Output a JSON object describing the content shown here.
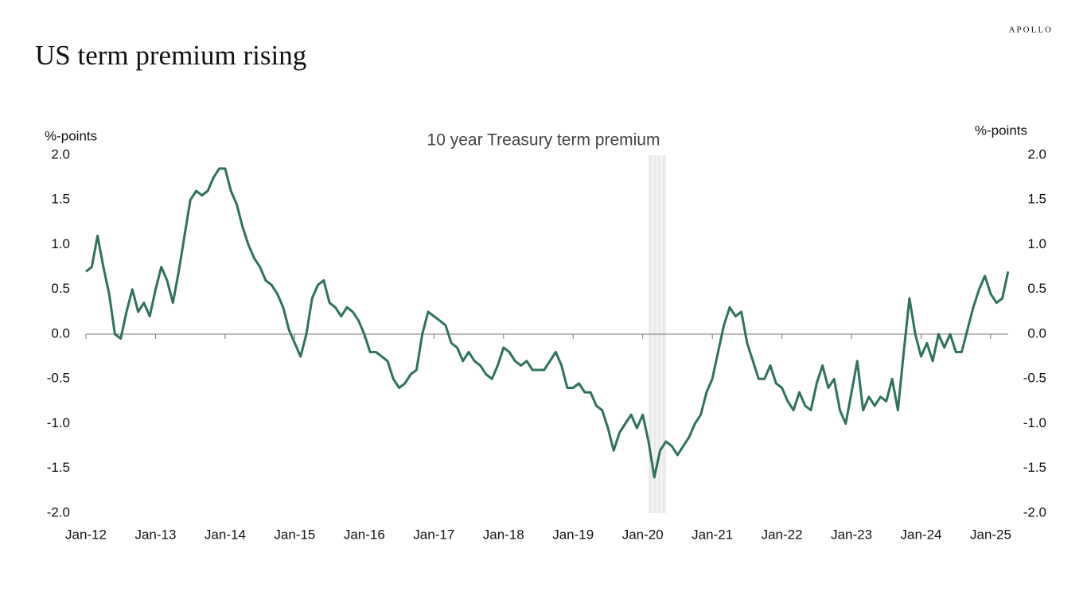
{
  "chart_data": {
    "type": "line",
    "brand": "APOLLO",
    "title": "US term premium rising",
    "subtitle": "10 year Treasury term premium",
    "ylabel": "%-points",
    "y2label": "%-points",
    "x": [
      "2012-01",
      "2012-02",
      "2012-03",
      "2012-04",
      "2012-05",
      "2012-06",
      "2012-07",
      "2012-08",
      "2012-09",
      "2012-10",
      "2012-11",
      "2012-12",
      "2013-01",
      "2013-02",
      "2013-03",
      "2013-04",
      "2013-05",
      "2013-06",
      "2013-07",
      "2013-08",
      "2013-09",
      "2013-10",
      "2013-11",
      "2013-12",
      "2014-01",
      "2014-02",
      "2014-03",
      "2014-04",
      "2014-05",
      "2014-06",
      "2014-07",
      "2014-08",
      "2014-09",
      "2014-10",
      "2014-11",
      "2014-12",
      "2015-01",
      "2015-02",
      "2015-03",
      "2015-04",
      "2015-05",
      "2015-06",
      "2015-07",
      "2015-08",
      "2015-09",
      "2015-10",
      "2015-11",
      "2015-12",
      "2016-01",
      "2016-02",
      "2016-03",
      "2016-04",
      "2016-05",
      "2016-06",
      "2016-07",
      "2016-08",
      "2016-09",
      "2016-10",
      "2016-11",
      "2016-12",
      "2017-01",
      "2017-02",
      "2017-03",
      "2017-04",
      "2017-05",
      "2017-06",
      "2017-07",
      "2017-08",
      "2017-09",
      "2017-10",
      "2017-11",
      "2017-12",
      "2018-01",
      "2018-02",
      "2018-03",
      "2018-04",
      "2018-05",
      "2018-06",
      "2018-07",
      "2018-08",
      "2018-09",
      "2018-10",
      "2018-11",
      "2018-12",
      "2019-01",
      "2019-02",
      "2019-03",
      "2019-04",
      "2019-05",
      "2019-06",
      "2019-07",
      "2019-08",
      "2019-09",
      "2019-10",
      "2019-11",
      "2019-12",
      "2020-01",
      "2020-02",
      "2020-03",
      "2020-04",
      "2020-05",
      "2020-06",
      "2020-07",
      "2020-08",
      "2020-09",
      "2020-10",
      "2020-11",
      "2020-12",
      "2021-01",
      "2021-02",
      "2021-03",
      "2021-04",
      "2021-05",
      "2021-06",
      "2021-07",
      "2021-08",
      "2021-09",
      "2021-10",
      "2021-11",
      "2021-12",
      "2022-01",
      "2022-02",
      "2022-03",
      "2022-04",
      "2022-05",
      "2022-06",
      "2022-07",
      "2022-08",
      "2022-09",
      "2022-10",
      "2022-11",
      "2022-12",
      "2023-01",
      "2023-02",
      "2023-03",
      "2023-04",
      "2023-05",
      "2023-06",
      "2023-07",
      "2023-08",
      "2023-09",
      "2023-10",
      "2023-11",
      "2023-12",
      "2024-01",
      "2024-02",
      "2024-03",
      "2024-04",
      "2024-05",
      "2024-06",
      "2024-07",
      "2024-08",
      "2024-09",
      "2024-10",
      "2024-11",
      "2024-12",
      "2025-01",
      "2025-02",
      "2025-03",
      "2025-04"
    ],
    "series": [
      {
        "color": "#2e7358",
        "values": [
          0.7,
          0.75,
          1.1,
          0.75,
          0.45,
          0.0,
          -0.05,
          0.25,
          0.5,
          0.25,
          0.35,
          0.2,
          0.5,
          0.75,
          0.6,
          0.35,
          0.7,
          1.1,
          1.5,
          1.6,
          1.55,
          1.6,
          1.75,
          1.85,
          1.85,
          1.6,
          1.45,
          1.2,
          1.0,
          0.85,
          0.75,
          0.6,
          0.55,
          0.45,
          0.3,
          0.05,
          -0.1,
          -0.25,
          0.0,
          0.4,
          0.55,
          0.6,
          0.35,
          0.3,
          0.2,
          0.3,
          0.25,
          0.15,
          0.0,
          -0.2,
          -0.2,
          -0.25,
          -0.3,
          -0.5,
          -0.6,
          -0.55,
          -0.45,
          -0.4,
          0.0,
          0.25,
          0.2,
          0.15,
          0.1,
          -0.1,
          -0.15,
          -0.3,
          -0.2,
          -0.3,
          -0.35,
          -0.45,
          -0.5,
          -0.35,
          -0.15,
          -0.2,
          -0.3,
          -0.35,
          -0.3,
          -0.4,
          -0.4,
          -0.4,
          -0.3,
          -0.2,
          -0.35,
          -0.6,
          -0.6,
          -0.55,
          -0.65,
          -0.65,
          -0.8,
          -0.85,
          -1.05,
          -1.3,
          -1.1,
          -1.0,
          -0.9,
          -1.05,
          -0.9,
          -1.2,
          -1.6,
          -1.3,
          -1.2,
          -1.25,
          -1.35,
          -1.25,
          -1.15,
          -1.0,
          -0.9,
          -0.65,
          -0.5,
          -0.2,
          0.1,
          0.3,
          0.2,
          0.25,
          -0.1,
          -0.3,
          -0.5,
          -0.5,
          -0.35,
          -0.55,
          -0.6,
          -0.75,
          -0.85,
          -0.65,
          -0.8,
          -0.85,
          -0.55,
          -0.35,
          -0.6,
          -0.5,
          -0.85,
          -1.0,
          -0.65,
          -0.3,
          -0.85,
          -0.7,
          -0.8,
          -0.7,
          -0.75,
          -0.5,
          -0.85,
          -0.2,
          0.4,
          0.0,
          -0.25,
          -0.1,
          -0.3,
          0.0,
          -0.15,
          0.0,
          -0.2,
          -0.2,
          0.05,
          0.3,
          0.5,
          0.65,
          0.45,
          0.35,
          0.4,
          0.7
        ]
      }
    ],
    "shaded_periods": [
      [
        "2020-02",
        "2020-05"
      ]
    ],
    "xlim": [
      "2012-01",
      "2025-04"
    ],
    "xticks": [
      {
        "value": "2012-01",
        "label": "Jan-12"
      },
      {
        "value": "2013-01",
        "label": "Jan-13"
      },
      {
        "value": "2014-01",
        "label": "Jan-14"
      },
      {
        "value": "2015-01",
        "label": "Jan-15"
      },
      {
        "value": "2016-01",
        "label": "Jan-16"
      },
      {
        "value": "2017-01",
        "label": "Jan-17"
      },
      {
        "value": "2018-01",
        "label": "Jan-18"
      },
      {
        "value": "2019-01",
        "label": "Jan-19"
      },
      {
        "value": "2020-01",
        "label": "Jan-20"
      },
      {
        "value": "2021-01",
        "label": "Jan-21"
      },
      {
        "value": "2022-01",
        "label": "Jan-22"
      },
      {
        "value": "2023-01",
        "label": "Jan-23"
      },
      {
        "value": "2024-01",
        "label": "Jan-24"
      },
      {
        "value": "2025-01",
        "label": "Jan-25"
      }
    ],
    "ylim": [
      -2,
      2
    ],
    "yticks": [
      {
        "value": 2,
        "label": "2.0"
      },
      1.5,
      {
        "value": 1,
        "label": "1.0"
      },
      0.5,
      {
        "value": 0,
        "label": "0.0"
      },
      -0.5,
      {
        "value": -1,
        "label": "-1.0"
      },
      -1.5,
      {
        "value": -2,
        "label": "-2.0"
      }
    ],
    "y2lim": [
      -2,
      2
    ],
    "y2ticks": [
      {
        "value": 2,
        "label": "2.0"
      },
      1.5,
      {
        "value": 1,
        "label": "1.0"
      },
      0.5,
      {
        "value": 0,
        "label": "0.0"
      },
      -0.5,
      {
        "value": -1,
        "label": "-1.0"
      },
      -1.5,
      {
        "value": -2,
        "label": "-2.0"
      }
    ]
  }
}
